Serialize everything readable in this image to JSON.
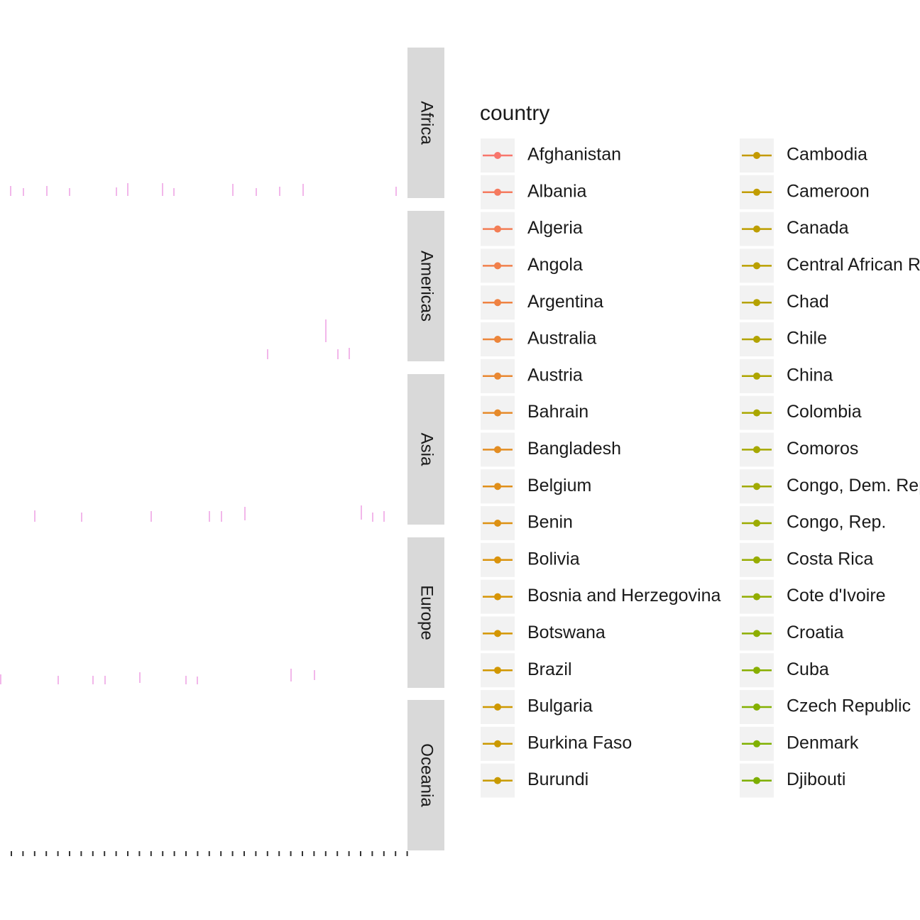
{
  "facets": [
    "Africa",
    "Americas",
    "Asia",
    "Europe",
    "Oceania"
  ],
  "legend": {
    "title": "country",
    "entries": [
      {
        "label": "Afghanistan",
        "color": "#F8766D"
      },
      {
        "label": "Albania",
        "color": "#F57A5F"
      },
      {
        "label": "Algeria",
        "color": "#F37D55"
      },
      {
        "label": "Angola",
        "color": "#F1804B"
      },
      {
        "label": "Argentina",
        "color": "#EF8242"
      },
      {
        "label": "Australia",
        "color": "#EC853A"
      },
      {
        "label": "Austria",
        "color": "#E98832"
      },
      {
        "label": "Bahrain",
        "color": "#E68A2A"
      },
      {
        "label": "Bangladesh",
        "color": "#E38D22"
      },
      {
        "label": "Belgium",
        "color": "#E08F1A"
      },
      {
        "label": "Benin",
        "color": "#DD9113"
      },
      {
        "label": "Bolivia",
        "color": "#DA930C"
      },
      {
        "label": "Bosnia and Herzegovina",
        "color": "#D79506"
      },
      {
        "label": "Botswana",
        "color": "#D49602"
      },
      {
        "label": "Brazil",
        "color": "#D19700"
      },
      {
        "label": "Bulgaria",
        "color": "#CE9800"
      },
      {
        "label": "Burkina Faso",
        "color": "#CB9900"
      },
      {
        "label": "Burundi",
        "color": "#C89A00"
      },
      {
        "label": "Cambodia",
        "color": "#C49A00"
      },
      {
        "label": "Cameroon",
        "color": "#C19C00"
      },
      {
        "label": "Canada",
        "color": "#BD9E00"
      },
      {
        "label": "Central African Republic",
        "color": "#BAA000"
      },
      {
        "label": "Chad",
        "color": "#B6A200"
      },
      {
        "label": "Chile",
        "color": "#B2A300"
      },
      {
        "label": "China",
        "color": "#AEA500"
      },
      {
        "label": "Colombia",
        "color": "#AAA700"
      },
      {
        "label": "Comoros",
        "color": "#A6A800"
      },
      {
        "label": "Congo, Dem. Rep.",
        "color": "#A1AA00"
      },
      {
        "label": "Congo, Rep.",
        "color": "#9CAB00"
      },
      {
        "label": "Costa Rica",
        "color": "#97AC00"
      },
      {
        "label": "Cote d'Ivoire",
        "color": "#92AD00"
      },
      {
        "label": "Croatia",
        "color": "#8DAE00"
      },
      {
        "label": "Cuba",
        "color": "#88AF00"
      },
      {
        "label": "Czech Republic",
        "color": "#84B000"
      },
      {
        "label": "Denmark",
        "color": "#80B100"
      },
      {
        "label": "Djibouti",
        "color": "#7CAE00"
      }
    ]
  }
}
